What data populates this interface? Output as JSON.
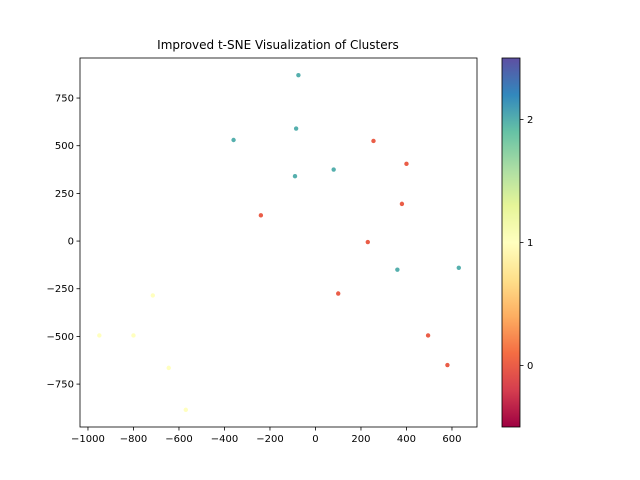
{
  "chart_data": {
    "type": "scatter",
    "title": "Improved t-SNE Visualization of Clusters",
    "xlabel": "",
    "ylabel": "",
    "xlim": [
      -1035,
      710
    ],
    "ylim": [
      -975,
      960
    ],
    "xticks": [
      -1000,
      -800,
      -600,
      -400,
      -200,
      0,
      200,
      400,
      600
    ],
    "xtick_labels": [
      "−1000",
      "−800",
      "−600",
      "−400",
      "−200",
      "0",
      "200",
      "400",
      "600"
    ],
    "yticks": [
      -750,
      -500,
      -250,
      0,
      250,
      500,
      750
    ],
    "ytick_labels": [
      "−750",
      "−500",
      "−250",
      "0",
      "250",
      "500",
      "750"
    ],
    "grid": false,
    "colormap": "Spectral",
    "colorbar": {
      "vmin": -0.5,
      "vmax": 2.5,
      "ticks": [
        0,
        1,
        2
      ],
      "tick_labels": [
        "0",
        "1",
        "2"
      ]
    },
    "points": [
      {
        "x": -75,
        "y": 870,
        "label": 2
      },
      {
        "x": -360,
        "y": 530,
        "label": 2
      },
      {
        "x": -85,
        "y": 590,
        "label": 2
      },
      {
        "x": -90,
        "y": 340,
        "label": 2
      },
      {
        "x": 80,
        "y": 375,
        "label": 2
      },
      {
        "x": 360,
        "y": -150,
        "label": 2
      },
      {
        "x": 630,
        "y": -140,
        "label": 2
      },
      {
        "x": 255,
        "y": 525,
        "label": 0
      },
      {
        "x": 400,
        "y": 405,
        "label": 0
      },
      {
        "x": 380,
        "y": 195,
        "label": 0
      },
      {
        "x": -240,
        "y": 135,
        "label": 0
      },
      {
        "x": 230,
        "y": -5,
        "label": 0
      },
      {
        "x": 100,
        "y": -275,
        "label": 0
      },
      {
        "x": 495,
        "y": -495,
        "label": 0
      },
      {
        "x": 580,
        "y": -650,
        "label": 0
      },
      {
        "x": -715,
        "y": -285,
        "label": 1
      },
      {
        "x": -950,
        "y": -495,
        "label": 1
      },
      {
        "x": -800,
        "y": -495,
        "label": 1
      },
      {
        "x": -645,
        "y": -665,
        "label": 1
      },
      {
        "x": -570,
        "y": -885,
        "label": 1
      }
    ]
  }
}
